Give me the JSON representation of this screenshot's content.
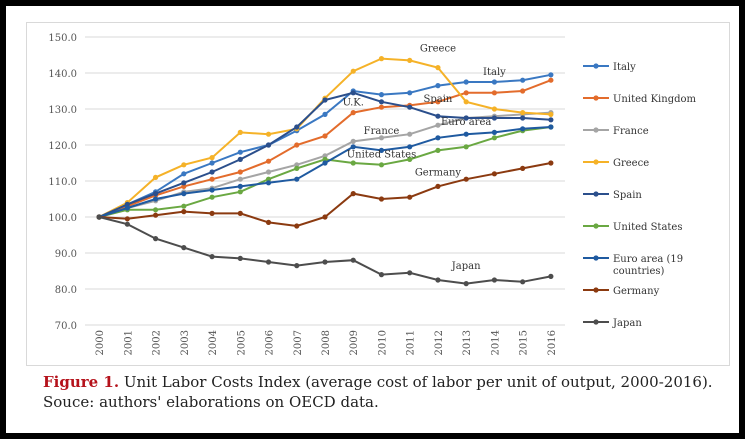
{
  "chart_data": {
    "type": "line",
    "title": "",
    "xlabel": "",
    "ylabel": "",
    "ylim": [
      70,
      150
    ],
    "yticks": [
      "70.0",
      "80.0",
      "90.0",
      "100.0",
      "110.0",
      "120.0",
      "130.0",
      "140.0",
      "150.0"
    ],
    "grid": "horizontal",
    "legend_position": "right",
    "x": [
      "2000",
      "2001",
      "2002",
      "2003",
      "2004",
      "2005",
      "2006",
      "2007",
      "2008",
      "2009",
      "2010",
      "2011",
      "2012",
      "2013",
      "2014",
      "2015",
      "2016"
    ],
    "series": [
      {
        "name": "Italy",
        "color": "#3a78c2",
        "values": [
          100,
          103.5,
          107,
          112,
          115,
          118,
          120,
          124,
          128.5,
          135,
          134,
          134.5,
          136.5,
          137.5,
          137.5,
          138,
          139.5
        ]
      },
      {
        "name": "United Kingdom",
        "color": "#e36c2c",
        "values": [
          100,
          103,
          106,
          108.5,
          110.5,
          112.5,
          115.5,
          120,
          122.5,
          129,
          130.5,
          131,
          132,
          134.5,
          134.5,
          135,
          138
        ]
      },
      {
        "name": "France",
        "color": "#a5a5a5",
        "values": [
          100,
          102.5,
          104.5,
          107,
          108,
          110.5,
          112.5,
          114.5,
          117,
          121,
          122,
          123,
          125.5,
          127.5,
          128,
          128.5,
          129
        ]
      },
      {
        "name": "Greece",
        "color": "#f5b228",
        "values": [
          100,
          104,
          111,
          114.5,
          116.5,
          123.5,
          123,
          124.5,
          133,
          140.5,
          144,
          143.5,
          141.5,
          132,
          130,
          129,
          128.5
        ]
      },
      {
        "name": "Spain",
        "color": "#2b4f8c",
        "values": [
          100,
          103.5,
          106.5,
          109.5,
          112.5,
          116,
          120,
          125,
          132.5,
          134.5,
          132,
          130.5,
          128,
          127.5,
          127.5,
          127.5,
          127
        ]
      },
      {
        "name": "United States",
        "color": "#6aa842",
        "values": [
          100,
          102,
          102,
          103,
          105.5,
          107,
          110.5,
          113.5,
          116,
          115,
          114.5,
          116,
          118.5,
          119.5,
          122,
          124,
          125
        ]
      },
      {
        "name": "Euro area (19 countries)",
        "color": "#1f5aa0",
        "values": [
          100,
          102.5,
          105,
          106.5,
          107.5,
          108.5,
          109.5,
          110.5,
          115,
          119.5,
          118.5,
          119.5,
          122,
          123,
          123.5,
          124.5,
          125
        ]
      },
      {
        "name": "Germany",
        "color": "#8b3a10",
        "values": [
          100,
          99.5,
          100.5,
          101.5,
          101,
          101,
          98.5,
          97.5,
          100,
          106.5,
          105,
          105.5,
          108.5,
          110.5,
          112,
          113.5,
          115
        ]
      },
      {
        "name": "Japan",
        "color": "#4d4d4d",
        "values": [
          100,
          98,
          94,
          91.5,
          89,
          88.5,
          87.5,
          86.5,
          87.5,
          88,
          84,
          84.5,
          82.5,
          81.5,
          82.5,
          82,
          83.5
        ]
      }
    ],
    "annotations": [
      {
        "text": "Greece",
        "year": 2012,
        "value": 146
      },
      {
        "text": "Italy",
        "year": 2014,
        "value": 139.5
      },
      {
        "text": "U.K.",
        "year": 2009,
        "value": 131
      },
      {
        "text": "Spain",
        "year": 2012,
        "value": 132
      },
      {
        "text": "France",
        "year": 2010,
        "value": 123
      },
      {
        "text": "Euro area",
        "year": 2013,
        "value": 125.5
      },
      {
        "text": "United States",
        "year": 2010,
        "value": 116.5
      },
      {
        "text": "Germany",
        "year": 2012,
        "value": 111.5
      },
      {
        "text": "Japan",
        "year": 2013,
        "value": 85.5
      }
    ]
  },
  "caption": {
    "figure_label": "Figure 1.",
    "line1": " Unit Labor Costs Index (average cost of labor per unit of output, 2000-2016).",
    "line2": "Souce: authors' elaborations on OECD data."
  }
}
